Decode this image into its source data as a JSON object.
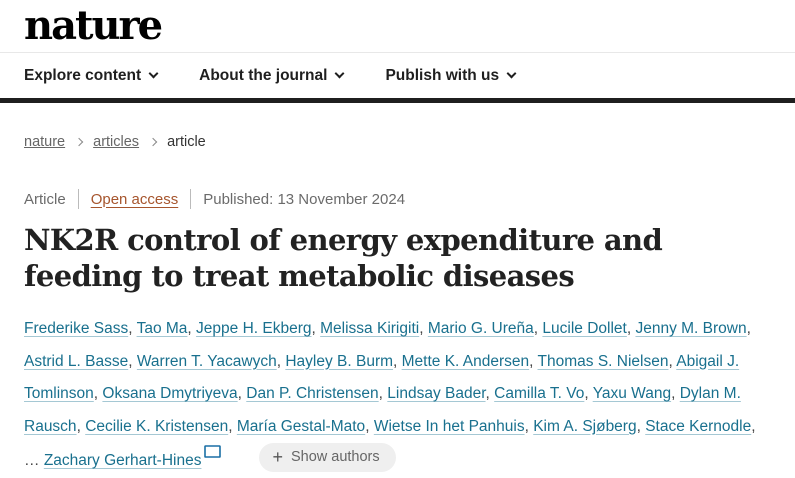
{
  "header": {
    "logo": "nature",
    "nav": [
      {
        "label": "Explore content"
      },
      {
        "label": "About the journal"
      },
      {
        "label": "Publish with us"
      }
    ]
  },
  "breadcrumb": {
    "items": [
      {
        "label": "nature"
      },
      {
        "label": "articles"
      },
      {
        "label": "article"
      }
    ]
  },
  "meta": {
    "type": "Article",
    "access": "Open access",
    "published": "Published: 13 November 2024"
  },
  "title": "NK2R control of energy expenditure and feeding to treat metabolic diseases",
  "authors": {
    "names": [
      "Frederike Sass",
      "Tao Ma",
      "Jeppe H. Ekberg",
      "Melissa Kirigiti",
      "Mario G. Ureña",
      "Lucile Dollet",
      "Jenny M. Brown",
      "Astrid L. Basse",
      "Warren T. Yacawych",
      "Hayley B. Burm",
      "Mette K. Andersen",
      "Thomas S. Nielsen",
      "Abigail J. Tomlinson",
      "Oksana Dmytriyeva",
      "Dan P. Christensen",
      "Lindsay Bader",
      "Camilla T. Vo",
      "Yaxu Wang",
      "Dylan M. Rausch",
      "Cecilie K. Kristensen",
      "María Gestal-Mato",
      "Wietse In het Panhuis",
      "Kim A. Sjøberg",
      "Stace Kernodle"
    ],
    "ellipsis": "…",
    "corresponding": "Zachary Gerhart-Hines",
    "show_authors_plus": "+",
    "show_authors_label": "Show authors",
    "envelope_icon": "email-envelope"
  },
  "colors": {
    "author_link": "#19708e",
    "open_access": "#a6552d",
    "nav_text": "#1f1f1f",
    "meta_text": "#6b6b6b",
    "nav_border": "#1f1f1f",
    "button_bg": "#efefef"
  }
}
